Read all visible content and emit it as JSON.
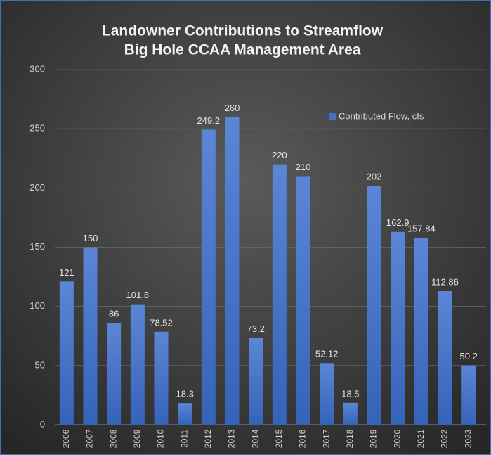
{
  "chart_data": {
    "type": "bar",
    "title": [
      "Landowner Contributions to Streamflow",
      "Big Hole CCAA Management Area"
    ],
    "categories": [
      "2006",
      "2007",
      "2008",
      "2009",
      "2010",
      "2011",
      "2012",
      "2013",
      "2014",
      "2015",
      "2016",
      "2017",
      "2018",
      "2019",
      "2020",
      "2021",
      "2022",
      "2023"
    ],
    "series": [
      {
        "name": "Contributed Flow, cfs",
        "color": "#4472c4",
        "values": [
          121,
          150,
          86,
          101.8,
          78.52,
          18.3,
          249.2,
          260,
          73.2,
          220,
          210,
          52.12,
          18.5,
          202,
          162.9,
          157.84,
          112.86,
          50.2
        ]
      }
    ],
    "ylim": [
      0,
      300
    ],
    "yticks": [
      0,
      50,
      100,
      150,
      200,
      250,
      300
    ],
    "grid": true,
    "legend": "top-right"
  }
}
